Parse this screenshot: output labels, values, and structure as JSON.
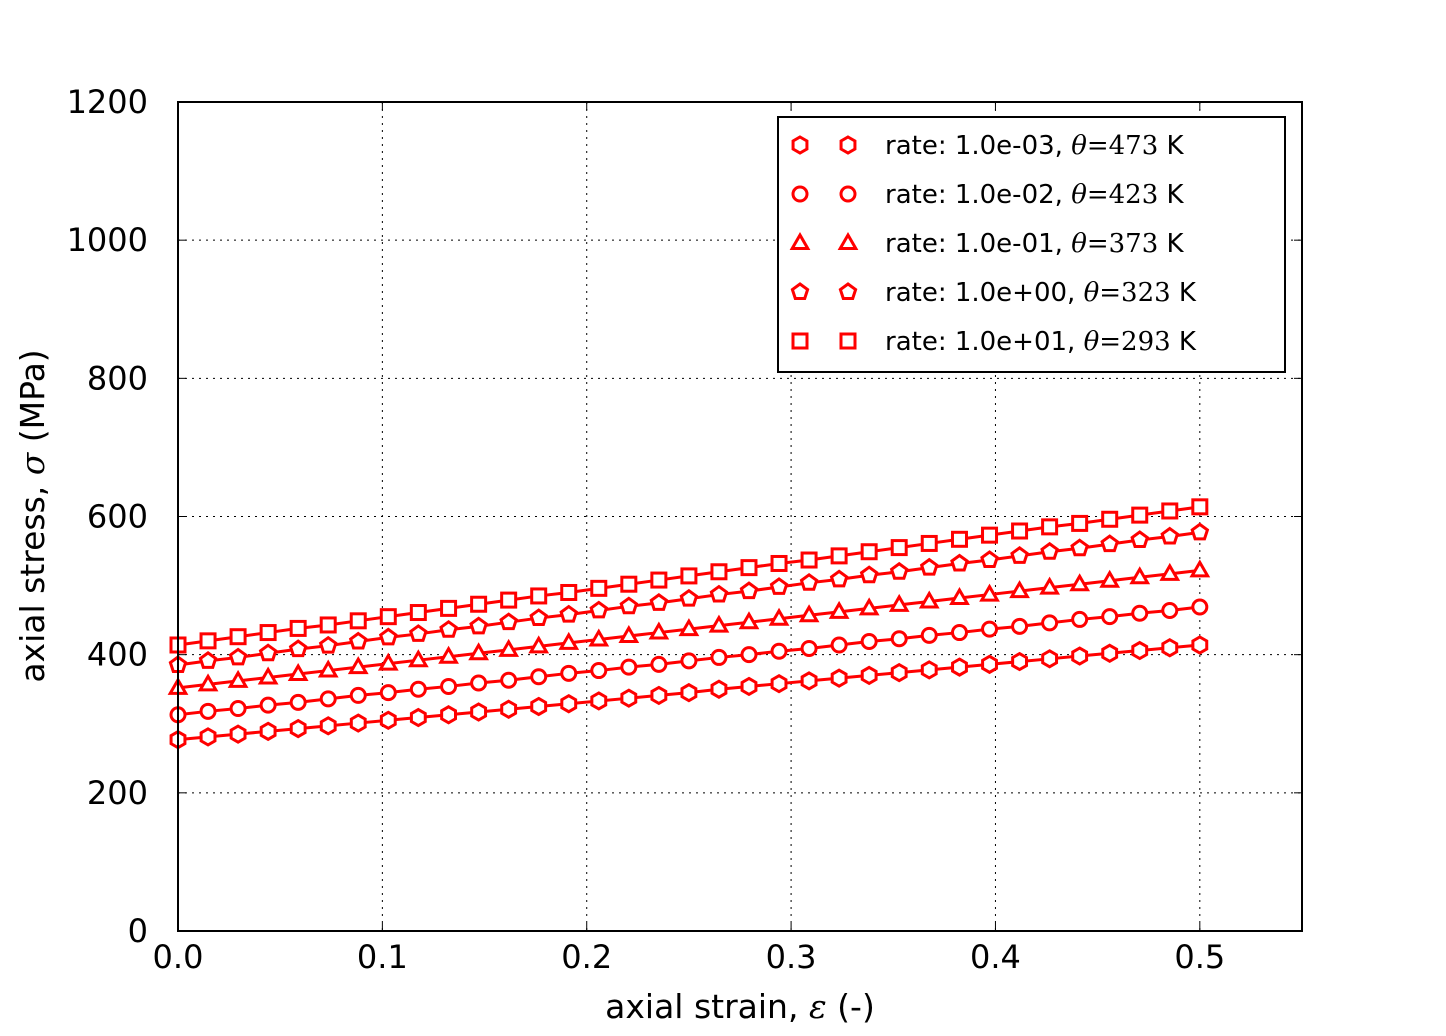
{
  "chart_data": {
    "type": "line",
    "xlabel": "axial strain, ε (-)",
    "xlabel_parts": [
      "axial strain, ",
      "ε",
      " (-)"
    ],
    "ylabel": "axial stress, σ (MPa)",
    "ylabel_parts": [
      "axial stress, ",
      "σ",
      " (MPa)"
    ],
    "xlim": [
      0,
      0.55
    ],
    "ylim": [
      0,
      1200
    ],
    "xticks": [
      "0.0",
      "0.1",
      "0.2",
      "0.3",
      "0.4",
      "0.5"
    ],
    "yticks": [
      "0",
      "200",
      "400",
      "600",
      "800",
      "1000",
      "1200"
    ],
    "grid": true,
    "legend_position": "top-right",
    "color": "#ff0000",
    "x": [
      0,
      0.0147,
      0.0294,
      0.0441,
      0.0588,
      0.0735,
      0.0882,
      0.1029,
      0.1176,
      0.1324,
      0.1471,
      0.1618,
      0.1765,
      0.1912,
      0.2059,
      0.2206,
      0.2353,
      0.25,
      0.2647,
      0.2794,
      0.2941,
      0.3088,
      0.3235,
      0.3382,
      0.3529,
      0.3676,
      0.3824,
      0.3971,
      0.4118,
      0.4265,
      0.4412,
      0.4559,
      0.4706,
      0.4853,
      0.5
    ],
    "series": [
      {
        "name": "rate: 1.0e-03, θ=473 K",
        "rate": "1.0e-03",
        "theta": "473",
        "marker": "hexagon",
        "y": [
          277,
          281,
          285,
          289,
          293,
          297,
          301,
          305,
          309,
          313,
          317,
          321,
          325,
          329,
          333,
          337,
          341,
          345,
          350,
          354,
          358,
          362,
          366,
          370,
          374,
          378,
          382,
          386,
          390,
          394,
          398,
          402,
          406,
          410,
          414
        ]
      },
      {
        "name": "rate: 1.0e-02, θ=423 K",
        "rate": "1.0e-02",
        "theta": "423",
        "marker": "circle",
        "y": [
          313,
          318,
          322,
          327,
          331,
          336,
          341,
          345,
          350,
          354,
          359,
          363,
          368,
          373,
          377,
          382,
          386,
          391,
          396,
          400,
          405,
          409,
          414,
          419,
          423,
          428,
          432,
          437,
          441,
          446,
          451,
          455,
          460,
          464,
          469
        ]
      },
      {
        "name": "rate: 1.0e-01, θ=373 K",
        "rate": "1.0e-01",
        "theta": "373",
        "marker": "triangle",
        "y": [
          352,
          357,
          362,
          367,
          372,
          377,
          382,
          387,
          392,
          397,
          402,
          407,
          412,
          417,
          422,
          427,
          432,
          437,
          442,
          447,
          452,
          457,
          462,
          467,
          472,
          477,
          482,
          487,
          492,
          497,
          502,
          507,
          512,
          517,
          522
        ]
      },
      {
        "name": "rate: 1.0e+00, θ=323 K",
        "rate": "1.0e+00",
        "theta": "323",
        "marker": "pentagon",
        "y": [
          385,
          391,
          396,
          402,
          408,
          413,
          419,
          425,
          430,
          436,
          441,
          447,
          453,
          458,
          464,
          470,
          475,
          481,
          487,
          492,
          498,
          504,
          509,
          515,
          520,
          526,
          532,
          537,
          543,
          549,
          554,
          560,
          566,
          571,
          577
        ]
      },
      {
        "name": "rate: 1.0e+01, θ=293 K",
        "rate": "1.0e+01",
        "theta": "293",
        "marker": "square",
        "y": [
          414,
          420,
          426,
          432,
          438,
          443,
          449,
          455,
          461,
          467,
          473,
          479,
          485,
          490,
          496,
          502,
          508,
          514,
          520,
          526,
          532,
          537,
          543,
          549,
          555,
          561,
          567,
          573,
          579,
          585,
          590,
          596,
          602,
          608,
          614
        ]
      }
    ],
    "legend_prefix": "rate: ",
    "legend_theta_symbol": "θ",
    "legend_eq": "=",
    "legend_unit": "K"
  }
}
